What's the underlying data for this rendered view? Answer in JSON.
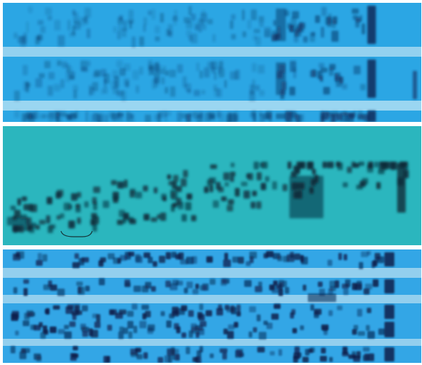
{
  "image": {
    "panels": [
      {
        "id": "top",
        "background": "#2aa8e6",
        "band_color": "#0c2a5a",
        "gap_color": "#a8dcf2"
      },
      {
        "id": "middle",
        "background": "#2ab8c0",
        "band_color": "#0a2a38"
      },
      {
        "id": "bottom",
        "background": "#34a8e8",
        "band_color": "#0a1e4a",
        "gap_color": "#a8d8f0"
      }
    ]
  }
}
